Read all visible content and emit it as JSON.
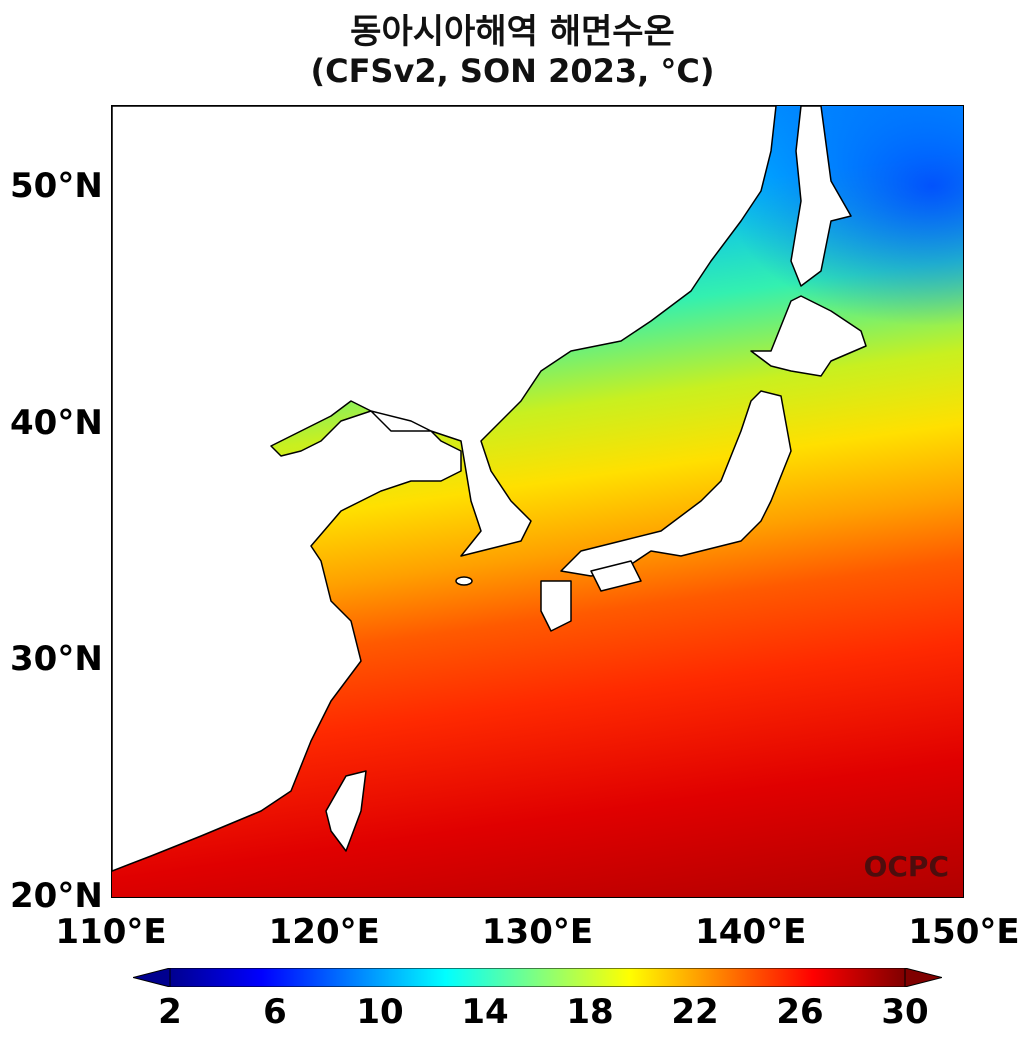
{
  "title": {
    "line1": "동아시아해역 해면수온",
    "line2": "(CFSv2, SON 2023, °C)"
  },
  "map": {
    "lon_range": [
      110,
      150
    ],
    "lat_range": [
      20,
      53.5
    ],
    "lat_labels": [
      {
        "value": 20,
        "label": "20°N"
      },
      {
        "value": 30,
        "label": "30°N"
      },
      {
        "value": 40,
        "label": "40°N"
      },
      {
        "value": 50,
        "label": "50°N"
      }
    ],
    "lon_labels": [
      {
        "value": 110,
        "label": "110°E"
      },
      {
        "value": 120,
        "label": "120°E"
      },
      {
        "value": 130,
        "label": "130°E"
      },
      {
        "value": 140,
        "label": "140°E"
      },
      {
        "value": 150,
        "label": "150°E"
      }
    ],
    "watermark": "OCPC",
    "land_color": "#ffffff"
  },
  "colorbar": {
    "min": 2,
    "max": 30,
    "extend": "both",
    "ticks": [
      "2",
      "6",
      "10",
      "14",
      "18",
      "22",
      "26",
      "30"
    ],
    "colors": [
      "#00008f",
      "#0000ff",
      "#0080ff",
      "#00ffff",
      "#80ff80",
      "#ffff00",
      "#ff8000",
      "#ff0000",
      "#800000"
    ]
  }
}
